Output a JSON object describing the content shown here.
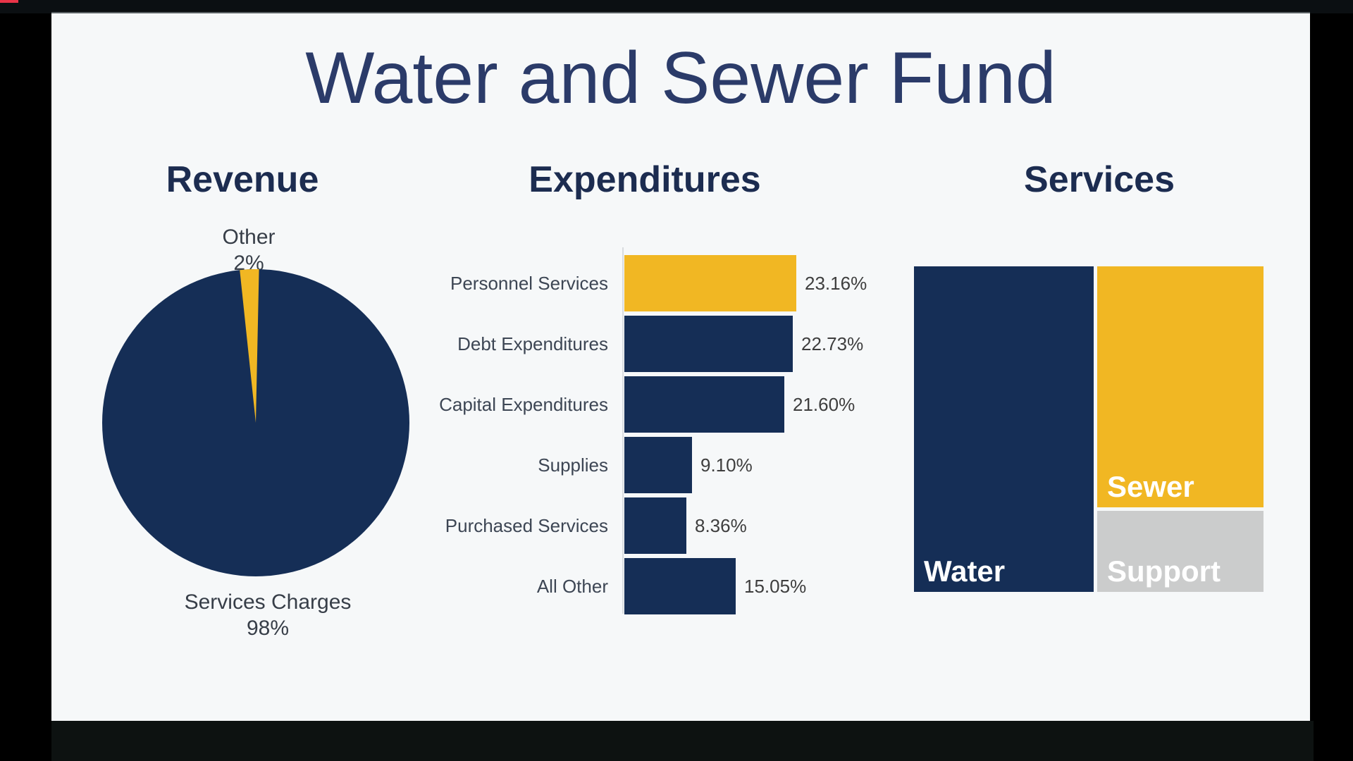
{
  "frame": {
    "red_fragment": "video-progress-fragment",
    "red_fragment_color": "#e93448"
  },
  "slide": {
    "title": "Water and Sewer Fund",
    "headers": {
      "revenue": "Revenue",
      "expenditures": "Expenditures",
      "services": "Services"
    }
  },
  "colors": {
    "navy": "#152e56",
    "gold": "#f1b723",
    "gray": "#cbcccc",
    "slide_bg": "#f6f8f9",
    "title_text": "#2b3b69",
    "header_text": "#1c2c50",
    "category_text": "#3d4654",
    "value_text": "#3e3e3e",
    "pie_label_text": "#373e48",
    "axis_line": "#d9dcdf"
  },
  "chart_data": [
    {
      "type": "pie",
      "title": "Revenue",
      "labels": [
        "Services Charges",
        "Other"
      ],
      "values": [
        98,
        2
      ],
      "value_labels": [
        "98%",
        "2%"
      ],
      "colors": [
        "#152e56",
        "#f1b723"
      ],
      "layout": "other slice is a thin wedge at 12 o'clock; labels outside pie, top and bottom"
    },
    {
      "type": "bar",
      "title": "Expenditures",
      "orientation": "horizontal",
      "categories": [
        "Personnel Services",
        "Debt Expenditures",
        "Capital Expenditures",
        "Supplies",
        "Purchased Services",
        "All Other"
      ],
      "values": [
        23.16,
        22.73,
        21.6,
        9.1,
        8.36,
        15.05
      ],
      "value_labels": [
        "23.16%",
        "22.73%",
        "21.60%",
        "9.10%",
        "8.36%",
        "15.05%"
      ],
      "bar_colors": [
        "#f1b723",
        "#152e56",
        "#152e56",
        "#152e56",
        "#152e56",
        "#152e56"
      ],
      "xlim": [
        0,
        25
      ],
      "grid": false,
      "value_label_position": "right of bar end"
    },
    {
      "type": "treemap",
      "title": "Services",
      "labels": [
        "Water",
        "Sewer",
        "Support"
      ],
      "colors": [
        "#152e56",
        "#f1b723",
        "#cbcccc"
      ],
      "layout": "Water large block left; Sewer upper right; Support lower right; no numeric values displayed"
    }
  ]
}
